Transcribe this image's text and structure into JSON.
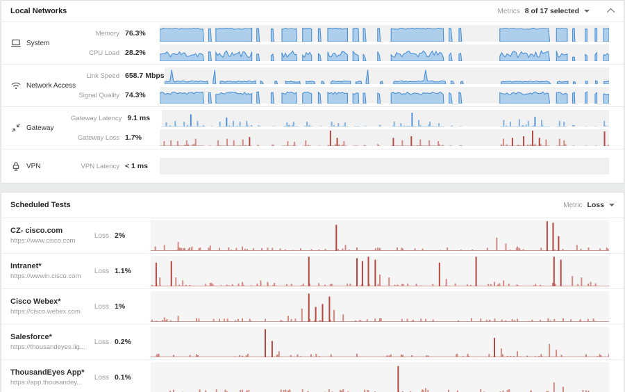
{
  "colors": {
    "blue_line": "#4a8fd3",
    "blue_fill": "#aecfec",
    "blue_soft": "#7fb0dd",
    "red_strong": "#b5443c",
    "red_soft": "#d08a82",
    "chart_bg": "#f1f1f2",
    "accent_text": "#2e2e2e"
  },
  "local_networks": {
    "title": "Local Networks",
    "metrics_label": "Metrics",
    "metrics_value": "8 of 17 selected",
    "rows": [
      {
        "name": "System",
        "icon": "laptop-icon",
        "metrics": [
          {
            "label": "Memory",
            "value": "76.3%",
            "chart": "memory"
          },
          {
            "label": "CPU Load",
            "value": "28.2%",
            "chart": "cpu_load"
          }
        ]
      },
      {
        "name": "Network Access",
        "icon": "wifi-icon",
        "metrics": [
          {
            "label": "Link Speed",
            "value": "658.7 Mbps",
            "chart": "link_speed"
          },
          {
            "label": "Signal Quality",
            "value": "74.3%",
            "chart": "signal_quality"
          }
        ]
      },
      {
        "name": "Gateway",
        "icon": "gateway-arrows-icon",
        "metrics": [
          {
            "label": "Gateway Latency",
            "value": "9.1 ms",
            "chart": "gateway_latency"
          },
          {
            "label": "Gateway Loss",
            "value": "1.7%",
            "chart": "gateway_loss"
          }
        ]
      },
      {
        "name": "VPN",
        "icon": "vpn-lock-icon",
        "metrics": [
          {
            "label": "VPN Latency",
            "value": "< 1 ms",
            "chart": "vpn_latency"
          }
        ]
      }
    ]
  },
  "scheduled_tests": {
    "title": "Scheduled Tests",
    "metric_label": "Metric",
    "metric_value": "Loss",
    "tests": [
      {
        "name": "CZ- cisco.com",
        "url": "https://www.cisco.com",
        "metric": "Loss",
        "value": "2%",
        "chart": "test_cz"
      },
      {
        "name": "Intranet*",
        "url": "https://wwwin.cisco.com",
        "metric": "Loss",
        "value": "1.1%",
        "chart": "test_intranet"
      },
      {
        "name": "Cisco Webex*",
        "url": "https://cisco.webex.com",
        "metric": "Loss",
        "value": "1%",
        "chart": "test_webex"
      },
      {
        "name": "Salesforce*",
        "url": "https://thousandeyes.lig...",
        "metric": "Loss",
        "value": "0.2%",
        "chart": "test_salesforce"
      },
      {
        "name": "ThousandEyes App*",
        "url": "https://app.thousandey...",
        "metric": "Loss",
        "value": "0.1%",
        "chart": "test_te_app"
      }
    ]
  },
  "chart_data": {
    "note": "Dense unlabeled sparklines over a shared time axis; x positions and heights are fractions estimated from pixels. White gaps in Local Networks charts are shared agent-offline periods.",
    "time_segments": [
      [
        0,
        0.098
      ],
      [
        0.109,
        0.115
      ],
      [
        0.125,
        0.205
      ],
      [
        0.216,
        0.222
      ],
      [
        0.248,
        0.254
      ],
      [
        0.272,
        0.305
      ],
      [
        0.318,
        0.338
      ],
      [
        0.353,
        0.359
      ],
      [
        0.374,
        0.418
      ],
      [
        0.43,
        0.443
      ],
      [
        0.453,
        0.459
      ],
      [
        0.485,
        0.491
      ],
      [
        0.515,
        0.632
      ],
      [
        0.644,
        0.651
      ],
      [
        0.666,
        0.672
      ],
      [
        0.757,
        0.868
      ],
      [
        0.883,
        0.907
      ],
      [
        0.919,
        0.924
      ],
      [
        0.947,
        0.951
      ],
      [
        0.969,
        0.973
      ],
      [
        0.988,
        1.0
      ]
    ],
    "charts": [
      {
        "id": "memory",
        "type": "area",
        "metric": "Memory",
        "current": 76.3,
        "unit": "%",
        "base": 0.78,
        "variance": 0.06,
        "seed": 7
      },
      {
        "id": "cpu_load",
        "type": "area",
        "metric": "CPU Load",
        "current": 28.2,
        "unit": "%",
        "base": 0.42,
        "variance": 0.4,
        "seed": 11
      },
      {
        "id": "link_speed",
        "type": "area",
        "metric": "Link Speed",
        "current": 658.7,
        "unit": "Mbps",
        "base": 0.16,
        "variance": 0.08,
        "spike_prob": 0.012,
        "spike_height": 0.85,
        "seed": 23
      },
      {
        "id": "signal_quality",
        "type": "area",
        "metric": "Signal Quality",
        "current": 74.3,
        "unit": "%",
        "base": 0.62,
        "variance": 0.16,
        "seed": 31
      },
      {
        "id": "gateway_latency",
        "type": "spikes",
        "palette": "blue",
        "masked": true,
        "metric": "Gateway Latency",
        "current": 9.1,
        "unit": "ms",
        "noise_count": 80,
        "seed": 41,
        "spikes": [
          [
            0.01,
            0.25
          ],
          [
            0.03,
            0.35
          ],
          [
            0.05,
            0.3
          ],
          [
            0.065,
            0.75
          ],
          [
            0.08,
            0.35
          ],
          [
            0.13,
            0.3
          ],
          [
            0.145,
            0.55
          ],
          [
            0.16,
            0.35
          ],
          [
            0.175,
            0.3
          ],
          [
            0.19,
            0.35
          ],
          [
            0.28,
            0.25
          ],
          [
            0.295,
            0.3
          ],
          [
            0.325,
            0.3
          ],
          [
            0.38,
            0.3
          ],
          [
            0.395,
            0.2
          ],
          [
            0.41,
            0.25
          ],
          [
            0.52,
            0.3
          ],
          [
            0.535,
            0.2
          ],
          [
            0.56,
            0.85
          ],
          [
            0.575,
            0.4
          ],
          [
            0.6,
            0.3
          ],
          [
            0.62,
            0.2
          ],
          [
            0.765,
            0.4
          ],
          [
            0.78,
            0.3
          ],
          [
            0.8,
            0.45
          ],
          [
            0.82,
            0.35
          ],
          [
            0.835,
            0.6
          ],
          [
            0.85,
            0.4
          ],
          [
            0.89,
            0.35
          ],
          [
            0.9,
            0.3
          ],
          [
            0.99,
            0.35
          ]
        ]
      },
      {
        "id": "gateway_loss",
        "type": "spikes",
        "palette": "red",
        "masked": true,
        "metric": "Gateway Loss",
        "current": 1.7,
        "unit": "%",
        "noise_count": 80,
        "seed": 43,
        "spikes": [
          [
            0.01,
            0.3
          ],
          [
            0.025,
            0.35
          ],
          [
            0.04,
            0.3
          ],
          [
            0.06,
            0.35
          ],
          [
            0.08,
            0.45
          ],
          [
            0.13,
            0.35
          ],
          [
            0.15,
            0.45
          ],
          [
            0.165,
            0.35
          ],
          [
            0.185,
            0.4
          ],
          [
            0.2,
            0.55
          ],
          [
            0.285,
            0.3
          ],
          [
            0.3,
            0.25
          ],
          [
            0.325,
            0.35
          ],
          [
            0.38,
            0.95
          ],
          [
            0.395,
            0.5
          ],
          [
            0.41,
            0.3
          ],
          [
            0.52,
            0.5
          ],
          [
            0.54,
            0.35
          ],
          [
            0.56,
            0.6
          ],
          [
            0.58,
            0.4
          ],
          [
            0.6,
            0.35
          ],
          [
            0.62,
            0.3
          ],
          [
            0.765,
            0.45
          ],
          [
            0.785,
            0.5
          ],
          [
            0.81,
            0.6
          ],
          [
            0.83,
            0.95
          ],
          [
            0.845,
            0.5
          ],
          [
            0.86,
            0.4
          ],
          [
            0.89,
            0.45
          ],
          [
            0.9,
            0.35
          ],
          [
            0.99,
            0.9
          ]
        ]
      },
      {
        "id": "vpn_latency",
        "type": "empty",
        "metric": "VPN Latency",
        "current": "< 1",
        "unit": "ms"
      },
      {
        "id": "test_cz",
        "type": "spikes",
        "palette": "red",
        "masked": false,
        "metric": "Loss",
        "current": 2,
        "unit": "%",
        "noise_count": 60,
        "seed": 53,
        "spikes": [
          [
            0.01,
            0.15
          ],
          [
            0.03,
            0.2
          ],
          [
            0.06,
            0.3
          ],
          [
            0.09,
            0.15
          ],
          [
            0.13,
            0.18
          ],
          [
            0.17,
            0.12
          ],
          [
            0.2,
            0.15
          ],
          [
            0.405,
            0.88
          ],
          [
            0.425,
            0.2
          ],
          [
            0.45,
            0.12
          ],
          [
            0.5,
            0.1
          ],
          [
            0.55,
            0.08
          ],
          [
            0.755,
            0.45
          ],
          [
            0.775,
            0.25
          ],
          [
            0.8,
            0.15
          ],
          [
            0.865,
            1.0
          ],
          [
            0.878,
            0.95
          ],
          [
            0.89,
            0.5
          ],
          [
            0.93,
            0.2
          ]
        ]
      },
      {
        "id": "test_intranet",
        "type": "spikes",
        "palette": "red",
        "masked": false,
        "metric": "Loss",
        "current": 1.1,
        "unit": "%",
        "noise_count": 70,
        "seed": 59,
        "spikes": [
          [
            0.012,
            0.8
          ],
          [
            0.02,
            0.3
          ],
          [
            0.045,
            0.85
          ],
          [
            0.055,
            0.3
          ],
          [
            0.07,
            0.2
          ],
          [
            0.13,
            0.12
          ],
          [
            0.2,
            0.15
          ],
          [
            0.24,
            0.2
          ],
          [
            0.255,
            0.15
          ],
          [
            0.27,
            0.12
          ],
          [
            0.345,
            1.0
          ],
          [
            0.45,
            0.95
          ],
          [
            0.462,
            0.85
          ],
          [
            0.475,
            1.0
          ],
          [
            0.49,
            0.9
          ],
          [
            0.5,
            0.4
          ],
          [
            0.52,
            0.3
          ],
          [
            0.63,
            0.8
          ],
          [
            0.645,
            0.25
          ],
          [
            0.71,
            1.0
          ],
          [
            0.75,
            0.15
          ],
          [
            0.77,
            0.2
          ],
          [
            0.88,
            1.0
          ],
          [
            0.895,
            0.9
          ],
          [
            0.92,
            0.35
          ],
          [
            0.94,
            0.3
          ],
          [
            0.96,
            0.15
          ]
        ]
      },
      {
        "id": "test_webex",
        "type": "spikes",
        "palette": "red",
        "masked": false,
        "metric": "Loss",
        "current": 1,
        "unit": "%",
        "noise_count": 60,
        "seed": 61,
        "spikes": [
          [
            0.03,
            0.15
          ],
          [
            0.06,
            0.2
          ],
          [
            0.1,
            0.12
          ],
          [
            0.15,
            0.1
          ],
          [
            0.2,
            0.12
          ],
          [
            0.25,
            0.1
          ],
          [
            0.3,
            0.2
          ],
          [
            0.33,
            0.45
          ],
          [
            0.345,
            0.95
          ],
          [
            0.36,
            0.5
          ],
          [
            0.375,
            0.6
          ],
          [
            0.39,
            0.85
          ],
          [
            0.4,
            0.4
          ],
          [
            0.42,
            0.25
          ],
          [
            0.5,
            0.12
          ],
          [
            0.6,
            0.1
          ],
          [
            0.7,
            0.12
          ],
          [
            0.8,
            0.1
          ],
          [
            0.9,
            0.12
          ]
        ]
      },
      {
        "id": "test_salesforce",
        "type": "spikes",
        "palette": "red",
        "masked": false,
        "metric": "Loss",
        "current": 0.2,
        "unit": "%",
        "noise_count": 50,
        "seed": 67,
        "spikes": [
          [
            0.05,
            0.08
          ],
          [
            0.1,
            0.1
          ],
          [
            0.25,
            0.95
          ],
          [
            0.265,
            0.55
          ],
          [
            0.28,
            0.2
          ],
          [
            0.35,
            0.1
          ],
          [
            0.45,
            0.12
          ],
          [
            0.55,
            0.08
          ],
          [
            0.75,
            0.65
          ],
          [
            0.765,
            0.3
          ],
          [
            0.8,
            0.2
          ],
          [
            0.87,
            0.45
          ],
          [
            0.885,
            0.25
          ],
          [
            0.95,
            0.1
          ]
        ]
      },
      {
        "id": "test_te_app",
        "type": "spikes",
        "palette": "red",
        "masked": false,
        "metric": "Loss",
        "current": 0.1,
        "unit": "%",
        "noise_count": 50,
        "seed": 71,
        "spikes": [
          [
            0.05,
            0.1
          ],
          [
            0.12,
            0.08
          ],
          [
            0.2,
            0.1
          ],
          [
            0.3,
            0.08
          ],
          [
            0.42,
            0.12
          ],
          [
            0.54,
            0.9
          ],
          [
            0.6,
            0.15
          ],
          [
            0.65,
            0.1
          ],
          [
            0.72,
            0.12
          ],
          [
            0.88,
            0.35
          ],
          [
            0.9,
            0.2
          ],
          [
            0.95,
            0.08
          ]
        ]
      }
    ]
  }
}
